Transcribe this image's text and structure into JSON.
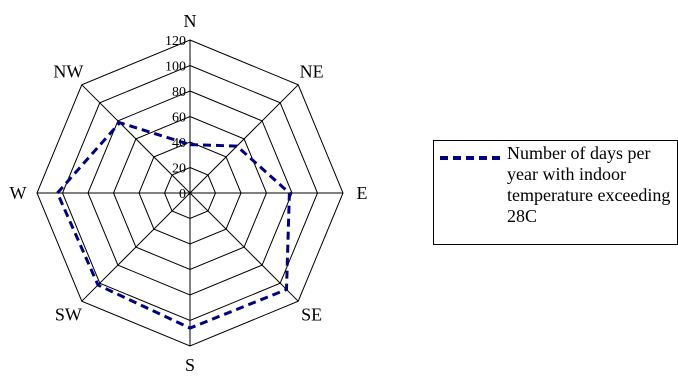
{
  "chart_data": {
    "type": "radar",
    "title": "",
    "categories": [
      "N",
      "NE",
      "E",
      "SE",
      "S",
      "SW",
      "W",
      "NW"
    ],
    "axis": {
      "min": 0,
      "max": 120,
      "step": 20,
      "ticks": [
        "0",
        "20",
        "40",
        "60",
        "80",
        "100",
        "120"
      ]
    },
    "grid": true,
    "legend_position": "right",
    "series": [
      {
        "name": "Number of days per year with indoor temperature exceeding 28C",
        "values": [
          38,
          52,
          78,
          107,
          106,
          102,
          104,
          78
        ],
        "color": "#000080",
        "style": "dashed"
      }
    ]
  }
}
